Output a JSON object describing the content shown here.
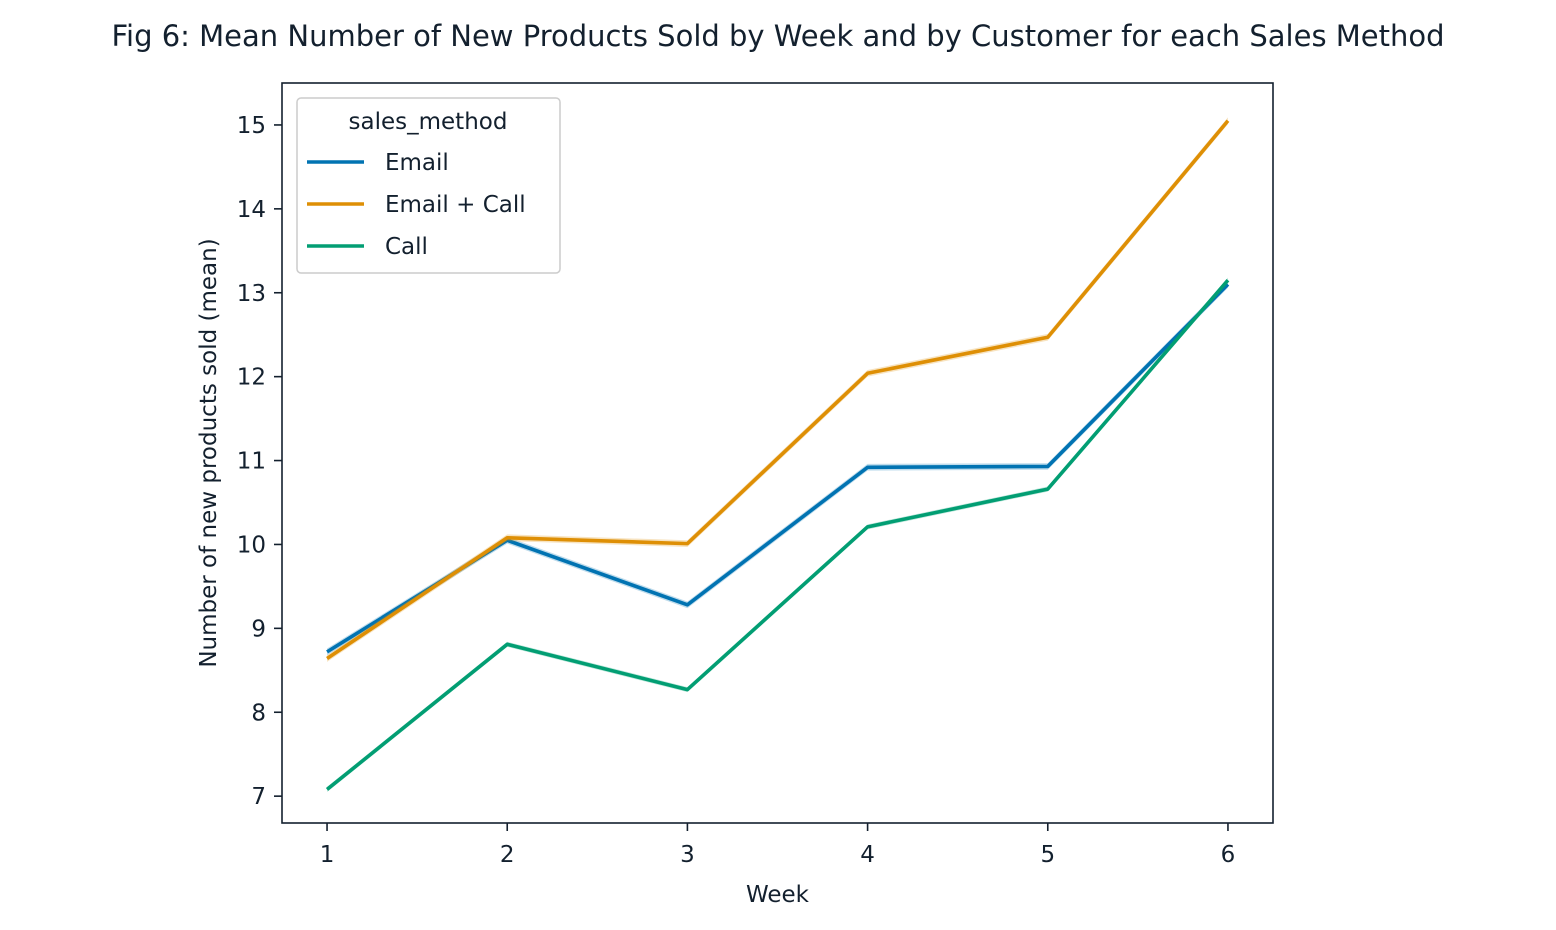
{
  "chart_data": {
    "type": "line",
    "title": "Fig 6: Mean Number of New Products Sold by Week and by Customer for each Sales Method",
    "xlabel": "Week",
    "ylabel": "Number of new products sold (mean)",
    "x": [
      1,
      2,
      3,
      4,
      5,
      6
    ],
    "x_ticks": [
      "1",
      "2",
      "3",
      "4",
      "5",
      "6"
    ],
    "y_ticks": [
      "7",
      "8",
      "9",
      "10",
      "11",
      "12",
      "13",
      "14",
      "15"
    ],
    "xlim": [
      0.75,
      6.25
    ],
    "ylim": [
      6.68,
      15.5
    ],
    "grid": false,
    "legend": {
      "title": "sales_method",
      "position": "top-left"
    },
    "series": [
      {
        "name": "Email",
        "color": "#0173b2",
        "values": [
          8.72,
          10.05,
          9.28,
          10.92,
          10.93,
          13.1
        ],
        "ci": 0.04
      },
      {
        "name": "Email + Call",
        "color": "#de8f05",
        "values": [
          8.64,
          10.08,
          10.01,
          12.04,
          12.47,
          15.05
        ],
        "ci": 0.04
      },
      {
        "name": "Call",
        "color": "#029e73",
        "values": [
          7.08,
          8.81,
          8.27,
          10.21,
          10.66,
          13.15
        ],
        "ci": 0.03
      }
    ]
  }
}
